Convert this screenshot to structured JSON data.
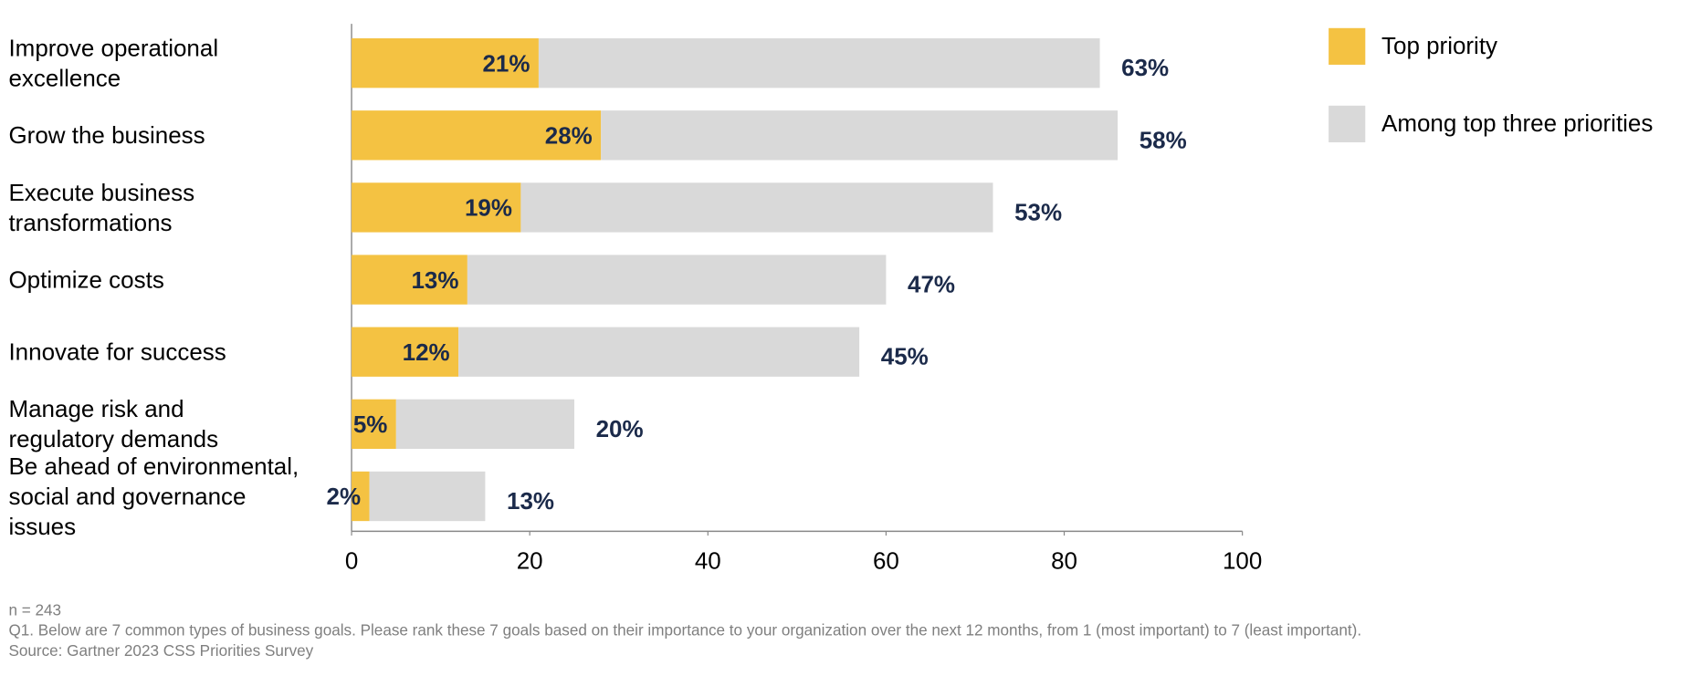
{
  "chart_data": {
    "type": "bar",
    "orientation": "horizontal",
    "stacked": true,
    "categories": [
      "Improve operational\nexcellence",
      "Grow the business",
      "Execute business\ntransformations",
      "Optimize costs",
      "Innovate for success",
      "Manage risk and\nregulatory demands",
      "Be ahead of environmental,\nsocial and governance\nissues"
    ],
    "series": [
      {
        "name": "Top priority",
        "color": "#f4c242",
        "values": [
          21,
          28,
          19,
          13,
          12,
          5,
          2
        ],
        "value_labels": [
          "21%",
          "28%",
          "19%",
          "13%",
          "12%",
          "5%",
          "2%"
        ]
      },
      {
        "name": "Among top three priorities",
        "color": "#d9d9d9",
        "values": [
          63,
          58,
          53,
          47,
          45,
          20,
          13
        ],
        "value_labels": [
          "63%",
          "58%",
          "53%",
          "47%",
          "45%",
          "20%",
          "13%"
        ]
      }
    ],
    "xlim": [
      0,
      100
    ],
    "xticks": [
      0,
      20,
      40,
      60,
      80,
      100
    ],
    "legend": "top-right",
    "label_color": "#1b2a4a",
    "notes": [
      "n = 243",
      "Q1. Below are 7 common types of business goals. Please rank these 7 goals based on their importance to your organization over the next 12 months, from 1 (most important) to 7 (least important).",
      "Source: Gartner 2023 CSS Priorities Survey"
    ]
  }
}
